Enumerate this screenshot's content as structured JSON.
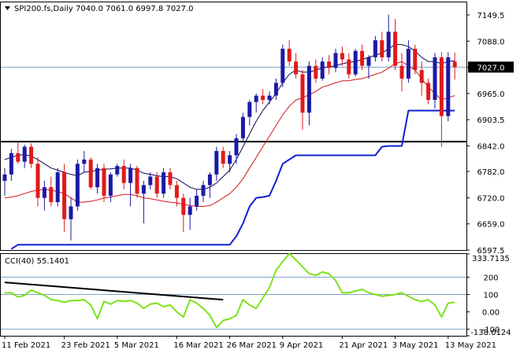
{
  "header": {
    "symbol_line": "SPI200.fs,Daily  7040.0 7061.0 6997.8 7027.0",
    "cci_label": "CCI(40) 55.1401"
  },
  "colors": {
    "bull": "#1a1aa6",
    "bear": "#e01a1a",
    "fast_ma": "#0a0a55",
    "slow_ma": "#d01818",
    "trail": "#1020d0",
    "level_line": "#000000",
    "cci": "#7ee21c",
    "cci_trend": "#000000",
    "price_tag": "#000000",
    "border": "#000000"
  },
  "chart_data": [
    {
      "type": "candlestick",
      "title": "SPI200.fs,Daily",
      "ylim": [
        6597.5,
        7179.0
      ],
      "y_ticks": [
        "7149.5",
        "7088.0",
        "7027.0",
        "6965.0",
        "6903.5",
        "6842.0",
        "6782.0",
        "6720.0",
        "6659.0",
        "6597.5"
      ],
      "current_price": "7027.0",
      "x_ticks": [
        {
          "label": "11 Feb 2021",
          "index": 0
        },
        {
          "label": "23 Feb 2021",
          "index": 9
        },
        {
          "label": "5 Mar 2021",
          "index": 17
        },
        {
          "label": "16 Mar 2021",
          "index": 26
        },
        {
          "label": "26 Mar 2021",
          "index": 34
        },
        {
          "label": "9 Apr 2021",
          "index": 42
        },
        {
          "label": "21 Apr 2021",
          "index": 51
        },
        {
          "label": "3 May 2021",
          "index": 59
        },
        {
          "label": "13 May 2021",
          "index": 67
        }
      ],
      "horizontal_level": 6852,
      "candles": [
        [
          6760,
          6790,
          6725,
          6775
        ],
        [
          6775,
          6835,
          6760,
          6825
        ],
        [
          6825,
          6850,
          6800,
          6805
        ],
        [
          6805,
          6845,
          6790,
          6840
        ],
        [
          6840,
          6848,
          6790,
          6800
        ],
        [
          6800,
          6815,
          6700,
          6720
        ],
        [
          6720,
          6760,
          6690,
          6745
        ],
        [
          6745,
          6770,
          6700,
          6710
        ],
        [
          6710,
          6790,
          6700,
          6780
        ],
        [
          6780,
          6800,
          6640,
          6670
        ],
        [
          6670,
          6720,
          6620,
          6700
        ],
        [
          6700,
          6810,
          6690,
          6800
        ],
        [
          6800,
          6830,
          6780,
          6810
        ],
        [
          6810,
          6815,
          6740,
          6745
        ],
        [
          6745,
          6800,
          6730,
          6790
        ],
        [
          6790,
          6800,
          6710,
          6725
        ],
        [
          6725,
          6780,
          6710,
          6775
        ],
        [
          6775,
          6800,
          6770,
          6795
        ],
        [
          6795,
          6810,
          6740,
          6755
        ],
        [
          6755,
          6800,
          6700,
          6790
        ],
        [
          6790,
          6795,
          6720,
          6730
        ],
        [
          6730,
          6760,
          6660,
          6750
        ],
        [
          6750,
          6780,
          6740,
          6770
        ],
        [
          6770,
          6780,
          6720,
          6730
        ],
        [
          6730,
          6790,
          6720,
          6780
        ],
        [
          6780,
          6790,
          6740,
          6750
        ],
        [
          6750,
          6760,
          6700,
          6720
        ],
        [
          6720,
          6730,
          6640,
          6680
        ],
        [
          6680,
          6720,
          6645,
          6700
        ],
        [
          6700,
          6740,
          6690,
          6725
        ],
        [
          6725,
          6760,
          6710,
          6750
        ],
        [
          6750,
          6780,
          6720,
          6775
        ],
        [
          6775,
          6840,
          6760,
          6830
        ],
        [
          6830,
          6840,
          6790,
          6800
        ],
        [
          6800,
          6830,
          6780,
          6820
        ],
        [
          6820,
          6870,
          6800,
          6860
        ],
        [
          6860,
          6920,
          6850,
          6910
        ],
        [
          6910,
          6950,
          6890,
          6945
        ],
        [
          6945,
          6965,
          6920,
          6960
        ],
        [
          6960,
          6975,
          6940,
          6950
        ],
        [
          6950,
          6970,
          6940,
          6960
        ],
        [
          6960,
          7000,
          6950,
          6990
        ],
        [
          6990,
          7080,
          6980,
          7070
        ],
        [
          7070,
          7090,
          7030,
          7040
        ],
        [
          7040,
          7060,
          7000,
          7010
        ],
        [
          7010,
          7020,
          6880,
          6920
        ],
        [
          6920,
          7040,
          6890,
          7030
        ],
        [
          7030,
          7045,
          6990,
          7000
        ],
        [
          7000,
          7050,
          6995,
          7040
        ],
        [
          7040,
          7055,
          7010,
          7025
        ],
        [
          7025,
          7070,
          7015,
          7060
        ],
        [
          7060,
          7075,
          7030,
          7045
        ],
        [
          7045,
          7060,
          7000,
          7010
        ],
        [
          7010,
          7070,
          7005,
          7065
        ],
        [
          7065,
          7080,
          7020,
          7030
        ],
        [
          7030,
          7055,
          7000,
          7050
        ],
        [
          7050,
          7100,
          7040,
          7090
        ],
        [
          7090,
          7110,
          7040,
          7050
        ],
        [
          7050,
          7150,
          7040,
          7110
        ],
        [
          7110,
          7140,
          7020,
          7030
        ],
        [
          7030,
          7060,
          6970,
          7000
        ],
        [
          7000,
          7090,
          6990,
          7070
        ],
        [
          7070,
          7080,
          7010,
          7020
        ],
        [
          7020,
          7040,
          6960,
          6990
        ],
        [
          6990,
          7000,
          6940,
          6950
        ],
        [
          6950,
          7060,
          6930,
          7050
        ],
        [
          7050,
          7062,
          6840,
          6912
        ],
        [
          6912,
          7062,
          6900,
          7050
        ],
        [
          7040,
          7061,
          6997.8,
          7027
        ]
      ],
      "fast_ma": [
        6810,
        6815,
        6820,
        6822,
        6818,
        6810,
        6800,
        6790,
        6785,
        6780,
        6775,
        6772,
        6780,
        6782,
        6785,
        6787,
        6788,
        6790,
        6790,
        6790,
        6785,
        6778,
        6775,
        6772,
        6770,
        6770,
        6765,
        6755,
        6745,
        6740,
        6740,
        6745,
        6755,
        6770,
        6785,
        6810,
        6840,
        6870,
        6900,
        6925,
        6945,
        6965,
        6990,
        7010,
        7020,
        7015,
        7015,
        7020,
        7025,
        7028,
        7030,
        7035,
        7038,
        7040,
        7045,
        7050,
        7055,
        7060,
        7070,
        7080,
        7080,
        7075,
        7065,
        7050,
        7040,
        7040,
        7035,
        7040,
        7042
      ],
      "slow_ma": [
        6720,
        6722,
        6725,
        6730,
        6735,
        6738,
        6740,
        6738,
        6735,
        6730,
        6720,
        6710,
        6710,
        6712,
        6715,
        6720,
        6722,
        6725,
        6728,
        6728,
        6725,
        6720,
        6718,
        6715,
        6712,
        6710,
        6708,
        6705,
        6702,
        6700,
        6700,
        6702,
        6710,
        6720,
        6730,
        6745,
        6765,
        6790,
        6815,
        6840,
        6865,
        6890,
        6915,
        6935,
        6950,
        6955,
        6962,
        6970,
        6980,
        6985,
        6990,
        6995,
        6995,
        6998,
        7000,
        7005,
        7010,
        7015,
        7025,
        7035,
        7040,
        7030,
        7020,
        7000,
        6980,
        6965,
        6950,
        6955,
        6960
      ],
      "trail": [
        null,
        6600,
        6610,
        6610,
        6610,
        6610,
        6610,
        6610,
        6610,
        6610,
        6610,
        6610,
        6610,
        6610,
        6610,
        6610,
        6610,
        6610,
        6610,
        6610,
        6610,
        6610,
        6610,
        6610,
        6610,
        6610,
        6610,
        6610,
        6610,
        6610,
        6610,
        6610,
        6610,
        6610,
        6610,
        6630,
        6660,
        6700,
        6720,
        6722,
        6725,
        6760,
        6800,
        6810,
        6820,
        6820,
        6820,
        6820,
        6820,
        6820,
        6820,
        6820,
        6820,
        6820,
        6820,
        6820,
        6820,
        6840,
        6842,
        6842,
        6842,
        6925,
        6925,
        6925,
        6925,
        6925,
        6925,
        6925,
        6925
      ]
    },
    {
      "type": "line",
      "title": "CCI(40) 55.1401",
      "ylim": [
        -138.0124,
        333.7135
      ],
      "y_ticks": [
        "333.7135",
        "200",
        "100",
        "0.00",
        "-100",
        "-138.0124"
      ],
      "levels": [
        200,
        100,
        -100
      ],
      "values": [
        110,
        110,
        85,
        95,
        125,
        110,
        95,
        70,
        65,
        55,
        65,
        65,
        70,
        40,
        -40,
        60,
        45,
        65,
        60,
        65,
        50,
        20,
        45,
        50,
        30,
        40,
        0,
        -30,
        70,
        50,
        20,
        -20,
        -90,
        -50,
        -40,
        -20,
        70,
        40,
        20,
        80,
        140,
        240,
        290,
        335,
        300,
        260,
        220,
        210,
        230,
        220,
        180,
        110,
        110,
        120,
        130,
        110,
        100,
        90,
        95,
        100,
        110,
        90,
        70,
        60,
        70,
        40,
        -30,
        50,
        55
      ],
      "trend_line": {
        "from_index": 0,
        "from_value": 170,
        "to_index": 33,
        "to_value": 70
      }
    }
  ]
}
